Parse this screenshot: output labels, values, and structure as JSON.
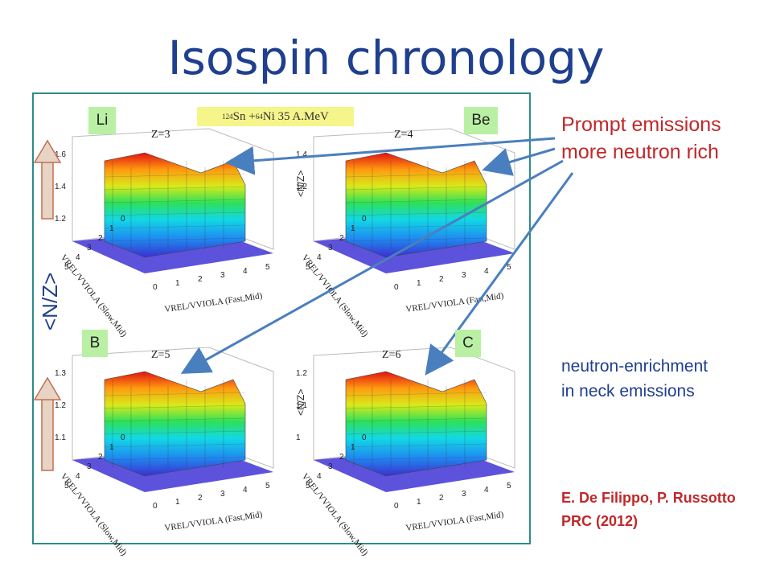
{
  "title": "Isospin chronology",
  "reaction": {
    "a_mass": "124",
    "a_sym": "Sn + ",
    "b_mass": "64",
    "b_sym": "Ni 35 A.MeV"
  },
  "panels": [
    {
      "tag": "Li",
      "z": "Z=3",
      "ymax": [
        "1.6",
        "1.4",
        "1.2"
      ]
    },
    {
      "tag": "Be",
      "z": "Z=4",
      "ymax": [
        "1.4",
        "1.2"
      ]
    },
    {
      "tag": "B",
      "z": "Z=5",
      "ymax": [
        "1.3",
        "1.2",
        "1.1"
      ]
    },
    {
      "tag": "C",
      "z": "Z=6",
      "ymax": [
        "1.2",
        "1.1",
        "1"
      ]
    }
  ],
  "axis_nz": "<N/Z>",
  "axis_x": "VREL/VVIOLA (Fast,Mid)",
  "axis_y": "VREL/VVIOLA (Slow,Mid)",
  "tick_values": [
    "0",
    "1",
    "2",
    "3",
    "4",
    "5"
  ],
  "side_label": "<N/Z>",
  "prompt": {
    "line1": "Prompt emissions",
    "line2": "more neutron rich"
  },
  "neck": {
    "line1": "neutron-enrichment",
    "line2": "in neck emissions"
  },
  "reference": {
    "line1": "E. De Filippo, P. Russotto",
    "line2": "PRC (2012)"
  },
  "colors": {
    "title": "#1f3f8f",
    "accent_red": "#c0282a",
    "tag_green": "#b9f0a4",
    "floor": "#4a3fd8"
  }
}
